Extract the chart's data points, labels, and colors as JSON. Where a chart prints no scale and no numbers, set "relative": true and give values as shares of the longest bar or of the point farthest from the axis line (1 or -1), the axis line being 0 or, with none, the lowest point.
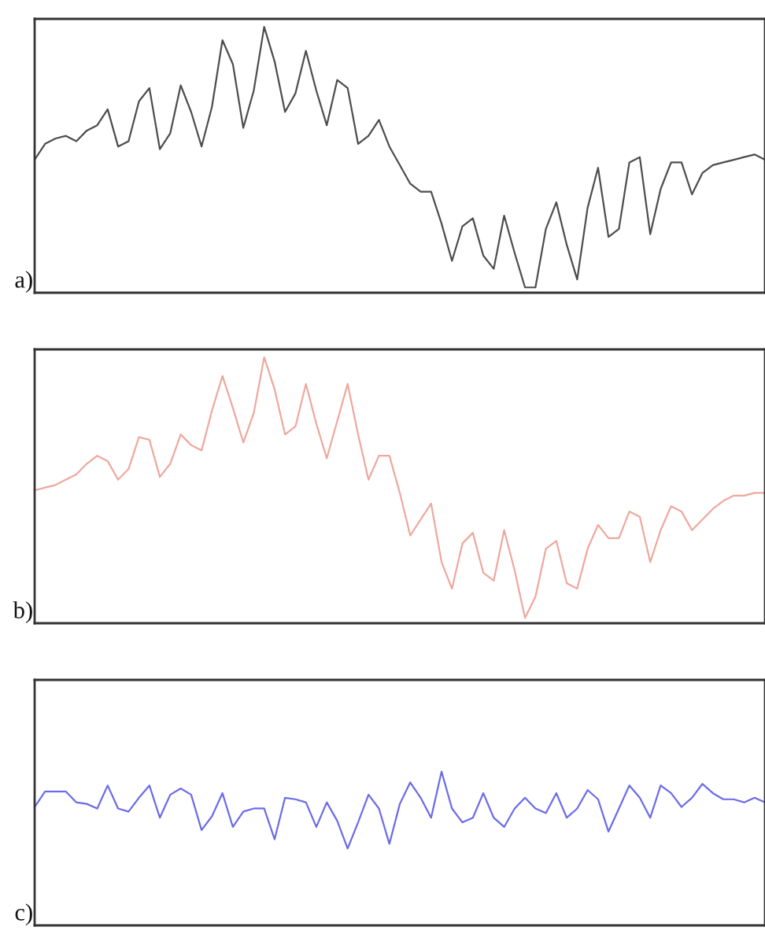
{
  "chart_data": [
    {
      "type": "line",
      "relative": true,
      "tick_labels": false,
      "annotations": [
        "a)"
      ],
      "categories": [
        null,
        null,
        null,
        null,
        null,
        null,
        null,
        null,
        null,
        null,
        null,
        null,
        null,
        null,
        null,
        null,
        null,
        null,
        null,
        null,
        null,
        null,
        null,
        null,
        null,
        null,
        null,
        null,
        null,
        null,
        null,
        null,
        null,
        null,
        null,
        null,
        null,
        null,
        null,
        null,
        null,
        null,
        null,
        null,
        null,
        null,
        null,
        null,
        null,
        null,
        null,
        null,
        null,
        null,
        null,
        null,
        null,
        null,
        null,
        null,
        null,
        null,
        null,
        null,
        null,
        null,
        null,
        null,
        null,
        null,
        null
      ],
      "series": [
        {
          "color": "#4d4d4d",
          "values": [
            0.5,
            0.56,
            0.58,
            0.59,
            0.57,
            0.61,
            0.63,
            0.69,
            0.55,
            0.57,
            0.72,
            0.77,
            0.54,
            0.6,
            0.78,
            0.68,
            0.55,
            0.7,
            0.95,
            0.86,
            0.62,
            0.76,
            1.0,
            0.87,
            0.68,
            0.75,
            0.91,
            0.76,
            0.63,
            0.8,
            0.77,
            0.56,
            0.59,
            0.65,
            0.55,
            0.48,
            0.41,
            0.38,
            0.38,
            0.26,
            0.12,
            0.25,
            0.28,
            0.14,
            0.09,
            0.29,
            0.15,
            0.02,
            0.02,
            0.24,
            0.34,
            0.18,
            0.05,
            0.32,
            0.47,
            0.21,
            0.24,
            0.49,
            0.51,
            0.22,
            0.39,
            0.49,
            0.49,
            0.37,
            0.45,
            0.48,
            0.49,
            0.5,
            0.51,
            0.52,
            0.5
          ]
        }
      ]
    },
    {
      "type": "line",
      "relative": true,
      "tick_labels": false,
      "annotations": [
        "b)"
      ],
      "categories": [
        null,
        null,
        null,
        null,
        null,
        null,
        null,
        null,
        null,
        null,
        null,
        null,
        null,
        null,
        null,
        null,
        null,
        null,
        null,
        null,
        null,
        null,
        null,
        null,
        null,
        null,
        null,
        null,
        null,
        null,
        null,
        null,
        null,
        null,
        null,
        null,
        null,
        null,
        null,
        null,
        null,
        null,
        null,
        null,
        null,
        null,
        null,
        null,
        null,
        null,
        null,
        null,
        null,
        null,
        null,
        null,
        null,
        null,
        null,
        null,
        null,
        null,
        null,
        null,
        null,
        null,
        null,
        null,
        null,
        null,
        null
      ],
      "series": [
        {
          "color": "#eea89e",
          "values": [
            0.5,
            0.51,
            0.52,
            0.54,
            0.56,
            0.6,
            0.63,
            0.61,
            0.54,
            0.58,
            0.7,
            0.69,
            0.55,
            0.6,
            0.71,
            0.67,
            0.65,
            0.8,
            0.93,
            0.81,
            0.68,
            0.79,
            1.0,
            0.88,
            0.71,
            0.74,
            0.9,
            0.75,
            0.62,
            0.76,
            0.9,
            0.71,
            0.54,
            0.63,
            0.63,
            0.49,
            0.33,
            0.39,
            0.45,
            0.23,
            0.13,
            0.3,
            0.34,
            0.19,
            0.16,
            0.35,
            0.2,
            0.02,
            0.1,
            0.28,
            0.31,
            0.15,
            0.13,
            0.28,
            0.37,
            0.32,
            0.32,
            0.42,
            0.4,
            0.23,
            0.35,
            0.44,
            0.42,
            0.35,
            0.39,
            0.43,
            0.46,
            0.48,
            0.48,
            0.49,
            0.49
          ]
        }
      ]
    },
    {
      "type": "line",
      "relative": true,
      "tick_labels": false,
      "annotations": [
        "c)"
      ],
      "categories": [
        null,
        null,
        null,
        null,
        null,
        null,
        null,
        null,
        null,
        null,
        null,
        null,
        null,
        null,
        null,
        null,
        null,
        null,
        null,
        null,
        null,
        null,
        null,
        null,
        null,
        null,
        null,
        null,
        null,
        null,
        null,
        null,
        null,
        null,
        null,
        null,
        null,
        null,
        null,
        null,
        null,
        null,
        null,
        null,
        null,
        null,
        null,
        null,
        null,
        null,
        null,
        null,
        null,
        null,
        null,
        null,
        null,
        null,
        null,
        null,
        null,
        null,
        null,
        null,
        null,
        null,
        null,
        null,
        null,
        null,
        null
      ],
      "series": [
        {
          "color": "#6b6bea",
          "values": [
            0.77,
            0.87,
            0.87,
            0.87,
            0.8,
            0.79,
            0.76,
            0.91,
            0.76,
            0.74,
            0.83,
            0.91,
            0.7,
            0.85,
            0.89,
            0.85,
            0.62,
            0.71,
            0.86,
            0.64,
            0.74,
            0.76,
            0.76,
            0.56,
            0.83,
            0.82,
            0.8,
            0.64,
            0.8,
            0.68,
            0.5,
            0.67,
            0.85,
            0.76,
            0.53,
            0.79,
            0.93,
            0.83,
            0.7,
            1.0,
            0.76,
            0.67,
            0.7,
            0.86,
            0.7,
            0.64,
            0.76,
            0.83,
            0.76,
            0.73,
            0.86,
            0.7,
            0.76,
            0.88,
            0.82,
            0.61,
            0.76,
            0.91,
            0.83,
            0.7,
            0.91,
            0.86,
            0.77,
            0.83,
            0.92,
            0.86,
            0.82,
            0.82,
            0.8,
            0.83,
            0.8
          ]
        }
      ]
    }
  ]
}
